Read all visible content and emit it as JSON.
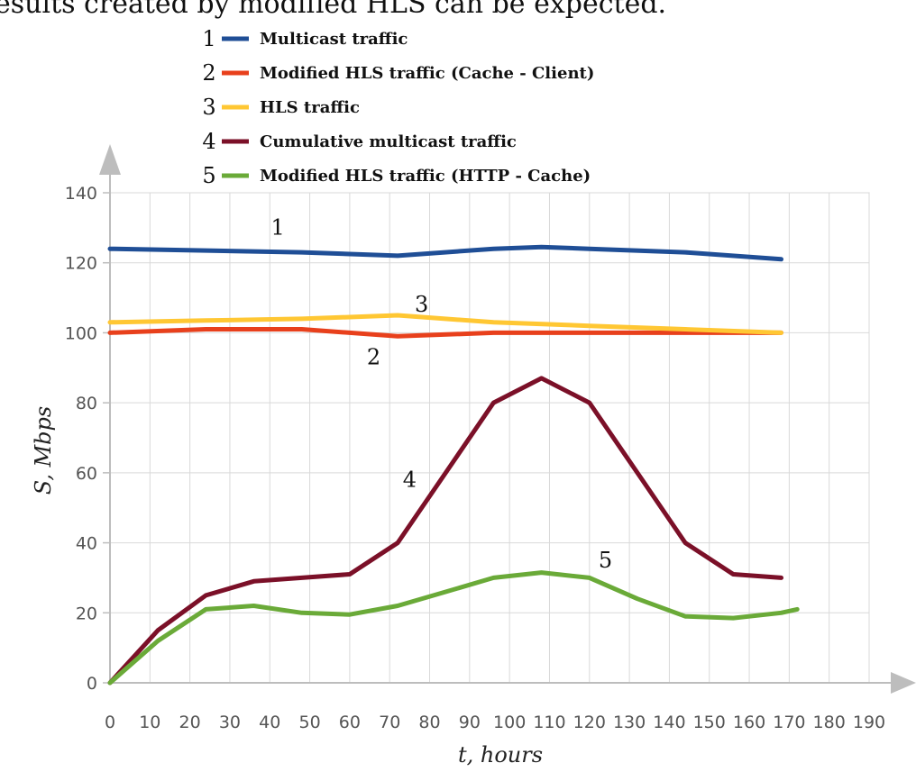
{
  "caption": "esults created by modified HLS can be expected.",
  "chart_data": {
    "type": "line",
    "title": "",
    "xlabel": "t, hours",
    "ylabel": "S, Mbps",
    "xlim": [
      0,
      190
    ],
    "ylim": [
      0,
      140
    ],
    "x_ticks": [
      0,
      10,
      20,
      30,
      40,
      50,
      60,
      70,
      80,
      90,
      100,
      110,
      120,
      130,
      140,
      150,
      160,
      170,
      180,
      190
    ],
    "y_ticks": [
      0,
      20,
      40,
      60,
      80,
      100,
      120,
      140
    ],
    "grid": true,
    "legend_position": "top",
    "series": [
      {
        "id": "1",
        "name": "Multicast traffic",
        "color": "#1f4e96",
        "x": [
          0,
          24,
          48,
          72,
          96,
          108,
          120,
          144,
          168
        ],
        "y": [
          124,
          123.5,
          123,
          122,
          124,
          124.5,
          124,
          123,
          121
        ],
        "label_x": 42,
        "label_y": 128
      },
      {
        "id": "2",
        "name": "Modified HLS traffic (Cache - Client)",
        "color": "#e8401c",
        "x": [
          0,
          24,
          48,
          72,
          96,
          120,
          144,
          168
        ],
        "y": [
          100,
          101,
          101,
          99,
          100,
          100,
          100,
          100
        ],
        "label_x": 66,
        "label_y": 91
      },
      {
        "id": "3",
        "name": "HLS traffic",
        "color": "#ffc733",
        "x": [
          0,
          24,
          48,
          72,
          96,
          120,
          144,
          168
        ],
        "y": [
          103,
          103.5,
          104,
          105,
          103,
          102,
          101,
          100
        ],
        "label_x": 78,
        "label_y": 106
      },
      {
        "id": "4",
        "name": "Cumulative multicast traffic",
        "color": "#7b1028",
        "x": [
          0,
          12,
          24,
          36,
          48,
          60,
          72,
          84,
          96,
          108,
          120,
          132,
          144,
          156,
          168
        ],
        "y": [
          0,
          15,
          25,
          29,
          30,
          31,
          40,
          60,
          80,
          87,
          80,
          60,
          40,
          31,
          30
        ],
        "label_x": 75,
        "label_y": 56
      },
      {
        "id": "5",
        "name": "Modified HLS traffic (HTTP - Cache)",
        "color": "#6aaa38",
        "x": [
          0,
          12,
          24,
          36,
          48,
          60,
          72,
          84,
          96,
          108,
          120,
          132,
          144,
          156,
          168,
          172
        ],
        "y": [
          0,
          12,
          21,
          22,
          20,
          19.5,
          22,
          26,
          30,
          31.5,
          30,
          24,
          19,
          18.5,
          20,
          21
        ],
        "label_x": 124,
        "label_y": 33
      }
    ]
  }
}
